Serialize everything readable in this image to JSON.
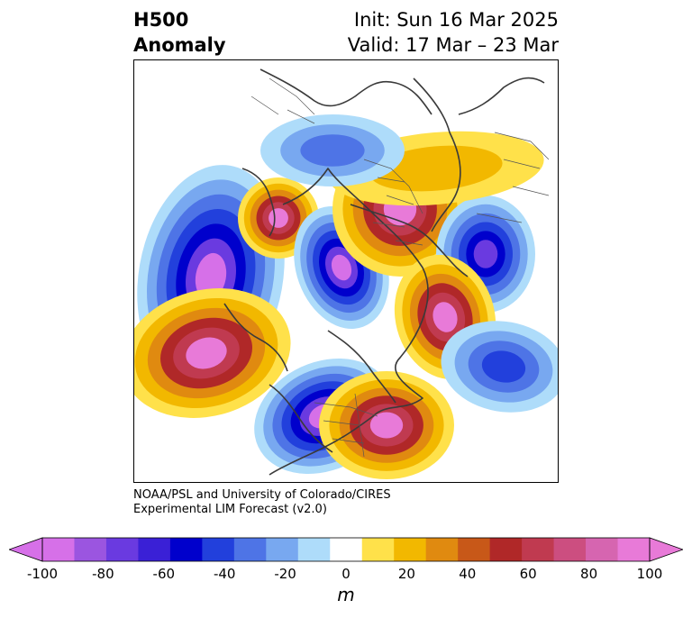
{
  "header": {
    "title_line1": "H500",
    "title_line2": "Anomaly",
    "init": "Init: Sun 16 Mar 2025",
    "valid": "Valid: 17 Mar – 23 Mar"
  },
  "credit": {
    "line1": "NOAA/PSL and University of Colorado/CIRES",
    "line2": "Experimental LIM Forecast (v2.0)"
  },
  "colorbar": {
    "ticks": [
      "-100",
      "-80",
      "-60",
      "-40",
      "-20",
      "0",
      "20",
      "40",
      "60",
      "80",
      "100"
    ],
    "unit": "m",
    "colors": [
      "#d670e8",
      "#9b55e0",
      "#6a3ae0",
      "#3a20d6",
      "#0000cc",
      "#2240dc",
      "#4e74e6",
      "#78a8f0",
      "#aedcfa",
      "#ffffff",
      "#ffe14a",
      "#f2b800",
      "#e08a10",
      "#c85818",
      "#b02828",
      "#c03a50",
      "#cc4e80",
      "#d665b0",
      "#e87ad8"
    ],
    "under_color": "#d670e8",
    "over_color": "#e87ad8"
  },
  "map": {
    "projection": "polar-stereographic-north",
    "colors": {
      "neg1": "#aedcfa",
      "neg2": "#78a8f0",
      "neg3": "#4e74e6",
      "neg4": "#2240dc",
      "neg5": "#0000cc",
      "neg6": "#6a3ae0",
      "neg7": "#d670e8",
      "pos1": "#ffe14a",
      "pos2": "#f2b800",
      "pos3": "#e08a10",
      "pos4": "#b02828",
      "pos5": "#c03a50",
      "pos6": "#e87ad8"
    }
  }
}
